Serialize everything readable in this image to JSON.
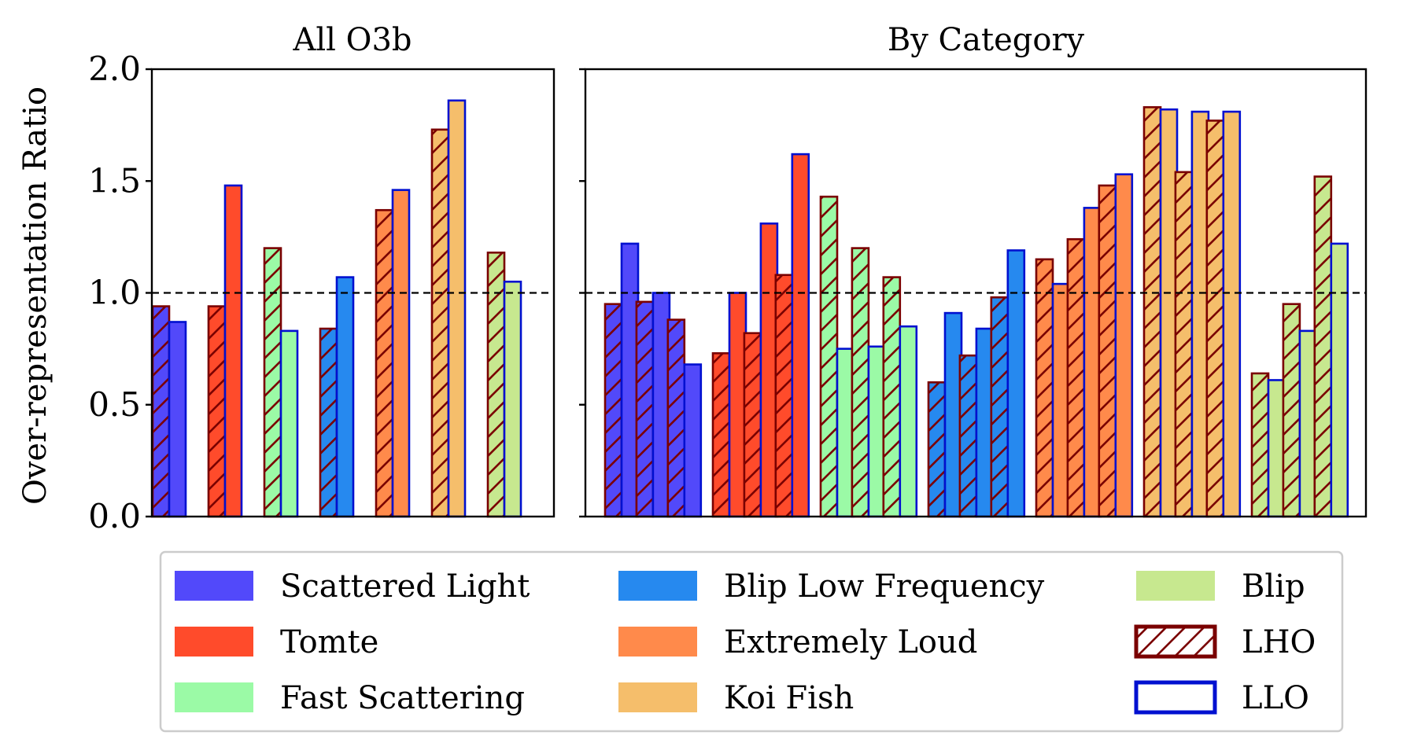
{
  "chart_data": {
    "type": "bar",
    "ylabel": "Over-representation Ratio",
    "ylim": [
      0,
      2.0
    ],
    "yticks": [
      "0.0",
      "0.5",
      "1.0",
      "1.5",
      "2.0"
    ],
    "reference_line": 1.0,
    "legend_placement": "bottom",
    "colors": {
      "Scattered Light": "#5249fa",
      "Tomte": "#ff4b2b",
      "Fast Scattering": "#9bfaa6",
      "Blip Low Frequency": "#2689ef",
      "Extremely Loud": "#ff8a4b",
      "Koi Fish": "#f5be6b",
      "Blip": "#c7e88f",
      "LHO_edge": "#7a0000",
      "LLO_edge": "#0010d0"
    },
    "panels": [
      {
        "title": "All O3b",
        "groups": [
          {
            "category": "Scattered Light",
            "LHO": [
              0.94
            ],
            "LLO": [
              0.87
            ]
          },
          {
            "category": "Tomte",
            "LHO": [
              0.94
            ],
            "LLO": [
              1.48
            ]
          },
          {
            "category": "Fast Scattering",
            "LHO": [
              1.2
            ],
            "LLO": [
              0.83
            ]
          },
          {
            "category": "Blip Low Frequency",
            "LHO": [
              0.84
            ],
            "LLO": [
              1.07
            ]
          },
          {
            "category": "Extremely Loud",
            "LHO": [
              1.37
            ],
            "LLO": [
              1.46
            ]
          },
          {
            "category": "Koi Fish",
            "LHO": [
              1.73
            ],
            "LLO": [
              1.86
            ]
          },
          {
            "category": "Blip",
            "LHO": [
              1.18
            ],
            "LLO": [
              1.05
            ]
          }
        ]
      },
      {
        "title": "By Category",
        "groups": [
          {
            "category": "Scattered Light",
            "LHO": [
              0.95,
              0.96,
              0.88
            ],
            "LLO": [
              1.22,
              1.0,
              0.68
            ]
          },
          {
            "category": "Tomte",
            "LHO": [
              0.73,
              0.82,
              1.08
            ],
            "LLO": [
              1.0,
              1.31,
              1.62
            ]
          },
          {
            "category": "Fast Scattering",
            "LHO": [
              1.43,
              1.2,
              1.07
            ],
            "LLO": [
              0.75,
              0.76,
              0.85
            ]
          },
          {
            "category": "Blip Low Frequency",
            "LHO": [
              0.6,
              0.72,
              0.98
            ],
            "LLO": [
              0.91,
              0.84,
              1.19
            ]
          },
          {
            "category": "Extremely Loud",
            "LHO": [
              1.15,
              1.24,
              1.48
            ],
            "LLO": [
              1.04,
              1.38,
              1.53
            ]
          },
          {
            "category": "Koi Fish",
            "LHO": [
              1.83,
              1.54,
              1.77
            ],
            "LLO": [
              1.82,
              1.81,
              1.81
            ]
          },
          {
            "category": "Blip",
            "LHO": [
              0.64,
              0.95,
              1.52
            ],
            "LLO": [
              0.61,
              0.83,
              1.22
            ]
          }
        ]
      }
    ],
    "legend": [
      "Scattered Light",
      "Tomte",
      "Fast Scattering",
      "Blip Low Frequency",
      "Extremely Loud",
      "Koi Fish",
      "Blip",
      "LHO",
      "LLO"
    ]
  }
}
